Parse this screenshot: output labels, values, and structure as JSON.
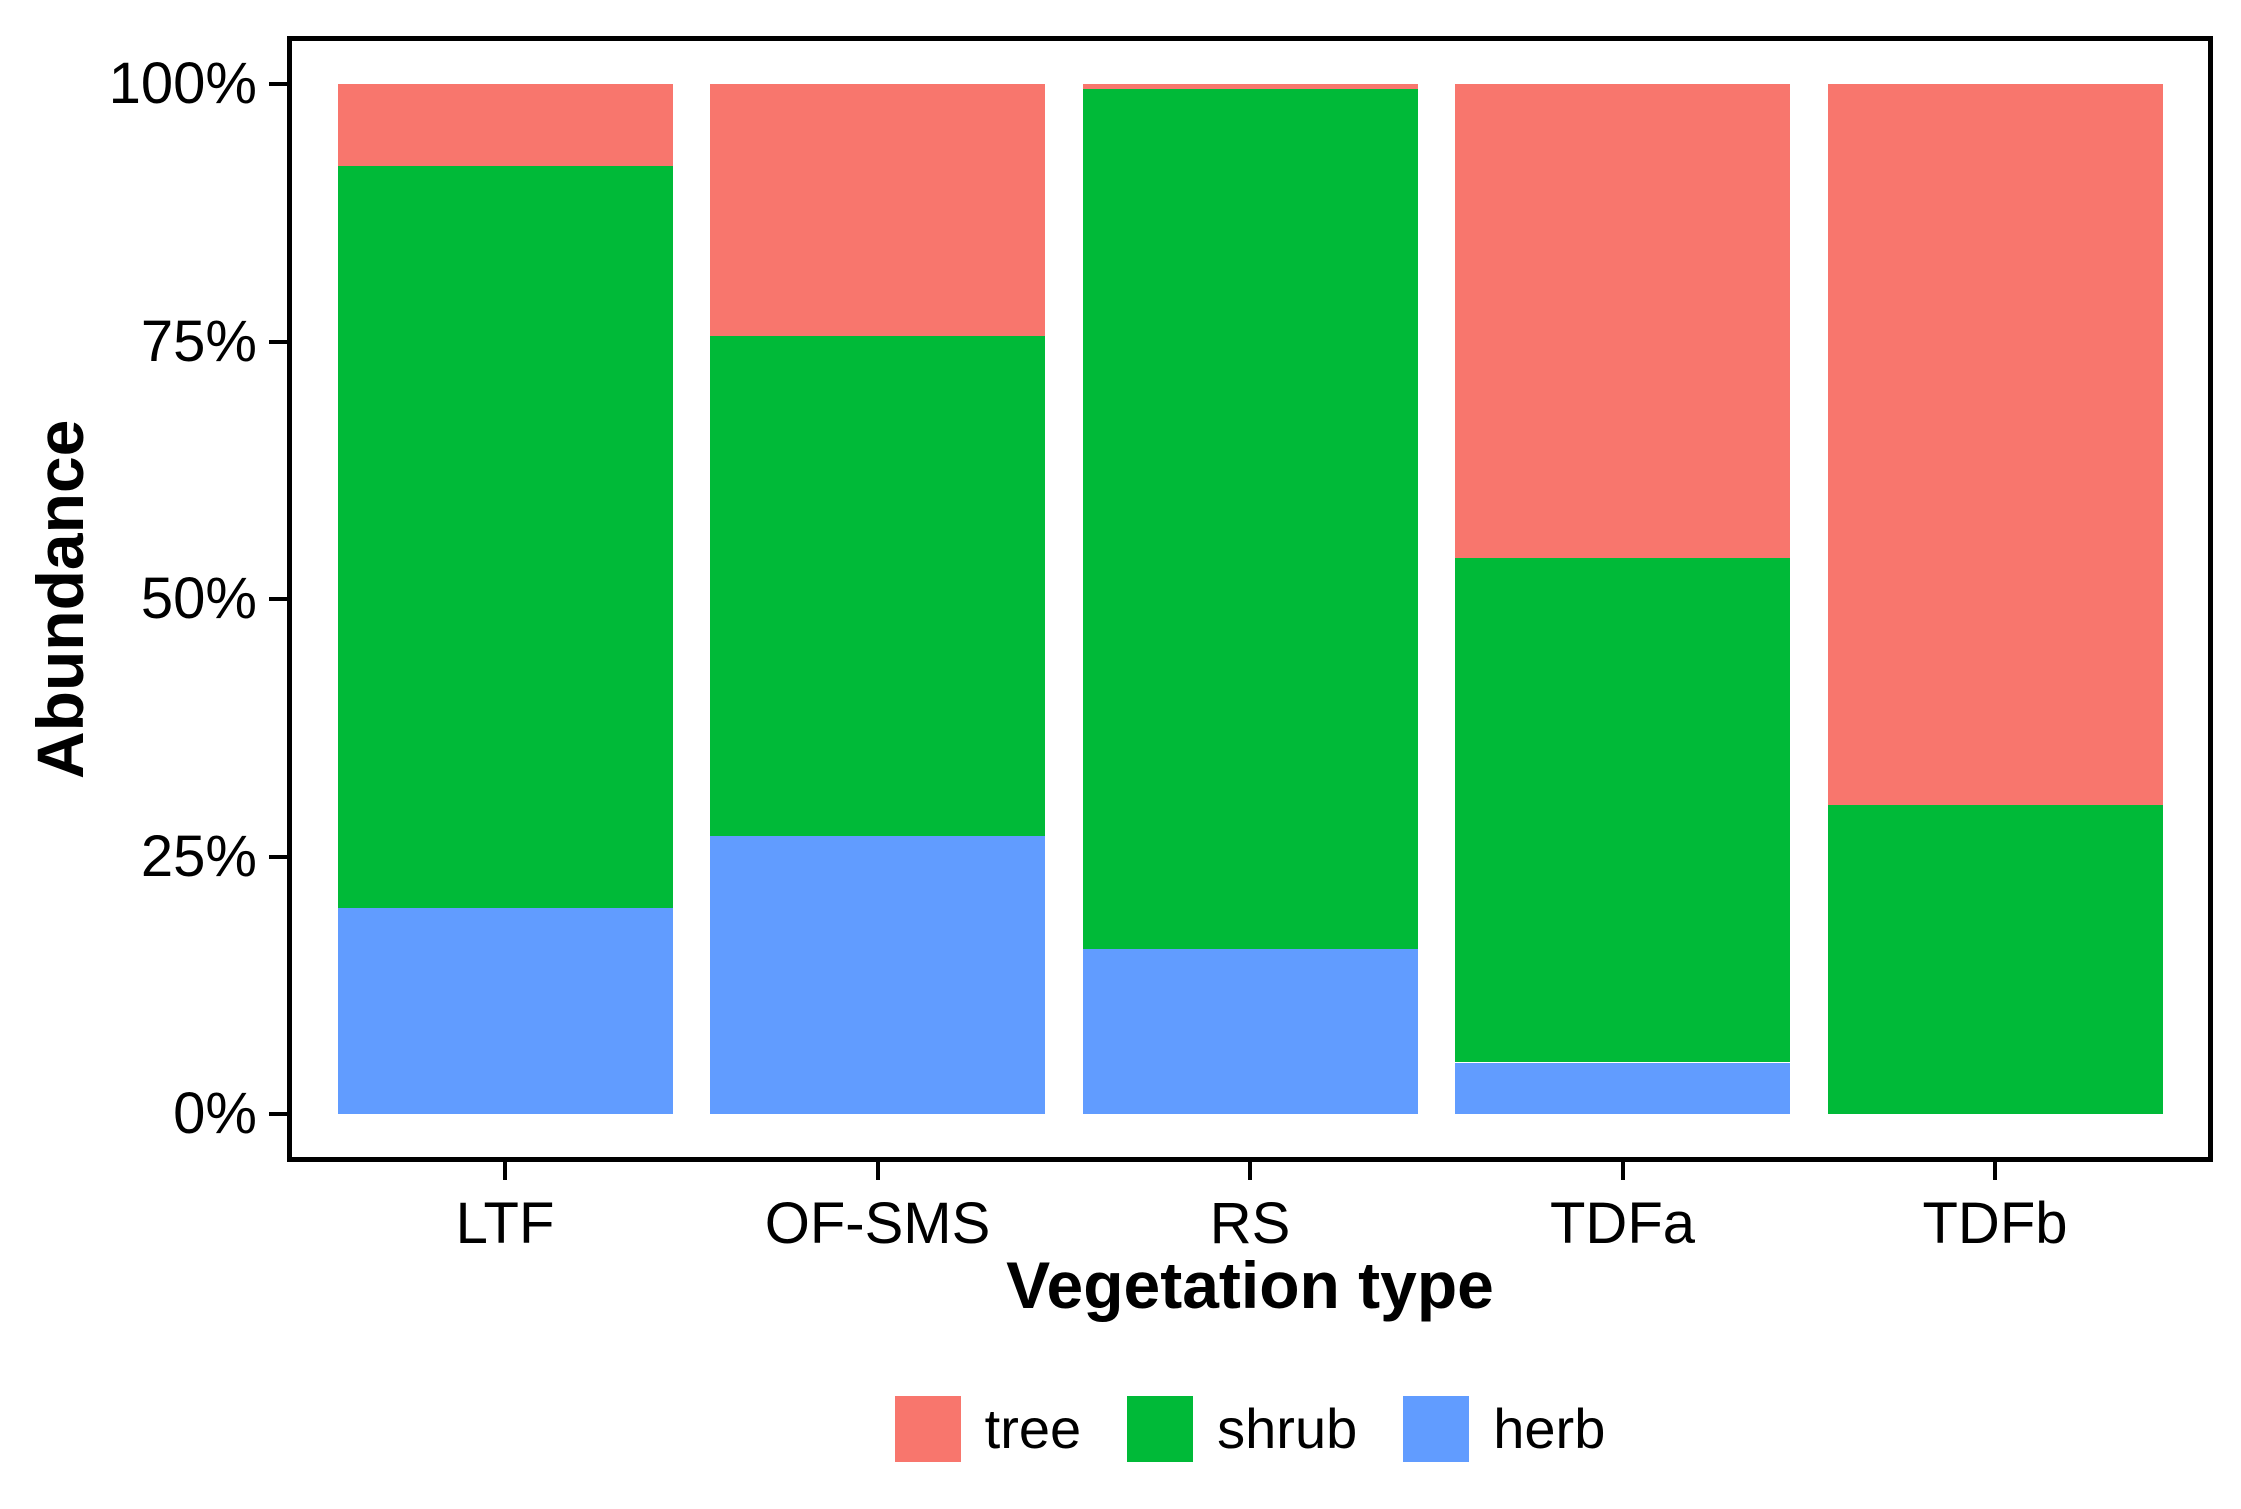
{
  "chart_data": {
    "type": "bar",
    "variant": "percent-stacked-vertical",
    "title": "",
    "xlabel": "Vegetation type",
    "ylabel": "Abundance",
    "categories": [
      "LTF",
      "OF-SMS",
      "RS",
      "TDFa",
      "TDFb"
    ],
    "series": [
      {
        "name": "tree",
        "color": "#F8766D",
        "values": [
          8,
          24.5,
          0.5,
          46,
          70
        ]
      },
      {
        "name": "shrub",
        "color": "#00BA38",
        "values": [
          72,
          48.5,
          83.5,
          49,
          30
        ]
      },
      {
        "name": "herb",
        "color": "#619CFF",
        "values": [
          20,
          27,
          16,
          5,
          0
        ]
      }
    ],
    "stack_order_bottom_to_top": [
      "herb",
      "shrub",
      "tree"
    ],
    "y_ticks": [
      {
        "value": 0,
        "label": "0%"
      },
      {
        "value": 25,
        "label": "25%"
      },
      {
        "value": 50,
        "label": "50%"
      },
      {
        "value": 75,
        "label": "75%"
      },
      {
        "value": 100,
        "label": "100%"
      }
    ],
    "ylim": [
      0,
      100
    ],
    "grid": false,
    "legend_position": "bottom",
    "legend": [
      {
        "label": "tree",
        "color": "#F8766D"
      },
      {
        "label": "shrub",
        "color": "#00BA38"
      },
      {
        "label": "herb",
        "color": "#619CFF"
      }
    ],
    "colors": {
      "panel_border": "#000000",
      "background": "#ffffff",
      "text": "#000000"
    }
  }
}
